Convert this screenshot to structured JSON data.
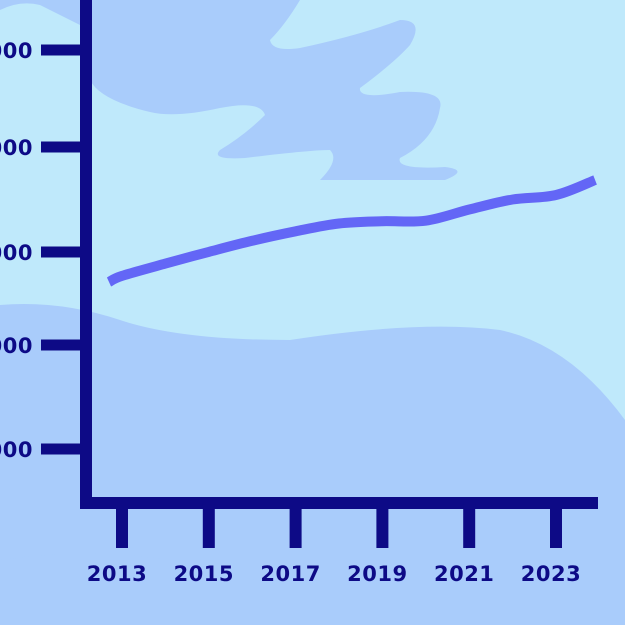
{
  "colors": {
    "background": "#bfe9fb",
    "blob": "#a9ccfb",
    "axis": "#0d0a86",
    "line": "#6366f6"
  },
  "chart_data": {
    "type": "line",
    "title": "",
    "xlabel": "",
    "ylabel": "",
    "grid": false,
    "legend": "none",
    "x_ticks": [
      "2013",
      "2015",
      "2017",
      "2019",
      "2021",
      "2023"
    ],
    "y_ticks": [
      "000",
      "000",
      "000",
      "000",
      "000"
    ],
    "series": [
      {
        "x": [
          2012.7,
          2013,
          2014,
          2015,
          2016,
          2017,
          2018,
          2019,
          2020,
          2021,
          2022,
          2023,
          2023.9
        ],
        "y": [
          100,
          102.2,
          106.6,
          110.8,
          114.8,
          118.2,
          121.0,
          121.8,
          122.0,
          126.0,
          129.6,
          131.2,
          136.6
        ]
      }
    ]
  }
}
